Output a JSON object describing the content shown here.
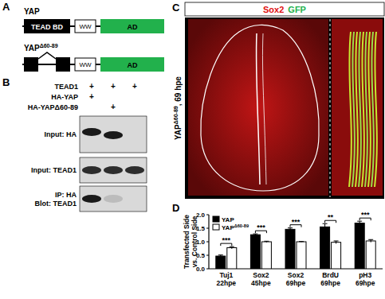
{
  "panel_labels": [
    "A",
    "B",
    "C",
    "D"
  ],
  "diagram": {
    "constructs": [
      {
        "name": "YAP",
        "domains": [
          "TEAD BD",
          "WW",
          "AD"
        ]
      },
      {
        "name": "YAP",
        "superscript": "Δ60-89",
        "domains": [
          "WW",
          "AD"
        ]
      }
    ]
  },
  "blot": {
    "conditions": [
      {
        "label": "TEAD1",
        "lanes": [
          "+",
          "+",
          "+"
        ]
      },
      {
        "label": "HA-YAP",
        "lanes": [
          "+",
          null,
          null
        ]
      },
      {
        "label": "HA-YAPΔ60-89",
        "lanes": [
          null,
          "+",
          null
        ]
      }
    ],
    "panels": [
      {
        "labels": [
          "Input: HA"
        ]
      },
      {
        "labels": [
          "Input: TEAD1"
        ]
      },
      {
        "labels": [
          "IP: HA",
          "Blot: TEAD1"
        ]
      }
    ]
  },
  "image": {
    "stain_labels": [
      "Sox2",
      "GFP"
    ],
    "side_label": {
      "main": "YAP",
      "superscript": "Δ60-89",
      "rest": ", 69 hpe"
    }
  },
  "chart_data": {
    "type": "bar",
    "categories": [
      "Tuj1 22hpe",
      "Sox2 45hpe",
      "Sox2 69hpe",
      "BrdU 69hpe",
      "pH3 69hpe"
    ],
    "ylabel": [
      "Transfected Side",
      "vs. Control Side"
    ],
    "ylim": [
      0,
      2
    ],
    "yticks": [
      {
        "value": 0,
        "label": "0.0"
      },
      {
        "value": 0.5,
        "label": "0.5"
      },
      {
        "value": 1,
        "label": "1.0"
      },
      {
        "value": 1.5,
        "label": "1.5"
      },
      {
        "value": 2,
        "label": "2.0"
      }
    ],
    "series": [
      {
        "name": "YAP",
        "color": "#000000",
        "values": [
          0.47,
          1.26,
          1.46,
          1.55,
          1.69
        ],
        "errors": [
          0.04,
          0.03,
          0.05,
          0.12,
          0.07
        ]
      },
      {
        "name": "YAPΔ60-89",
        "color": "#ffffff",
        "values": [
          0.78,
          1.0,
          1.0,
          0.98,
          1.03
        ],
        "errors": [
          0.04,
          0.02,
          0.01,
          0.05,
          0.05
        ]
      }
    ],
    "significance": [
      "***",
      "***",
      "***",
      "**",
      "***"
    ],
    "legend": "top-left"
  }
}
